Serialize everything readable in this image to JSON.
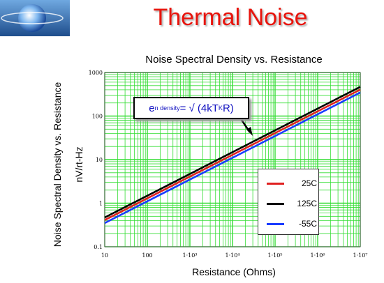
{
  "slide": {
    "title": "Thermal Noise",
    "logo_icon": "globe-logo-icon"
  },
  "formula": {
    "lhs_symbol": "e",
    "lhs_subscript": "n density",
    "equals": " = √ (4kT",
    "t_subscript": "K",
    "rhs_end": "R)"
  },
  "chart_data": {
    "type": "line",
    "title": "Noise Spectral Density vs. Resistance",
    "xlabel": "Resistance (Ohms)",
    "ylabel": "Noise Spectral Density vs. Resistance",
    "ylabel_secondary": "nV/rt-Hz",
    "x_scale": "log",
    "y_scale": "log",
    "xlim": [
      10,
      10000000
    ],
    "ylim": [
      0.1,
      1000
    ],
    "x_tick_labels": [
      "10",
      "100",
      "1·10³",
      "1·10⁴",
      "1·10⁵",
      "1·10⁶",
      "1·10⁷"
    ],
    "y_tick_labels": [
      "1000",
      "100",
      "10",
      "1",
      "0.1"
    ],
    "grid": true,
    "legend_position": "bottom-right",
    "series": [
      {
        "name": "25C",
        "color": "#e02020",
        "x": [
          10,
          10000000
        ],
        "y": [
          0.41,
          406
        ]
      },
      {
        "name": "125C",
        "color": "#000000",
        "x": [
          10,
          10000000
        ],
        "y": [
          0.47,
          469
        ]
      },
      {
        "name": "-55C",
        "color": "#1a3cff",
        "x": [
          10,
          10000000
        ],
        "y": [
          0.35,
          347
        ]
      }
    ]
  },
  "colors": {
    "title_red": "#e8140c",
    "grid_green": "#33dd33",
    "formula_blue": "#1010c0"
  }
}
